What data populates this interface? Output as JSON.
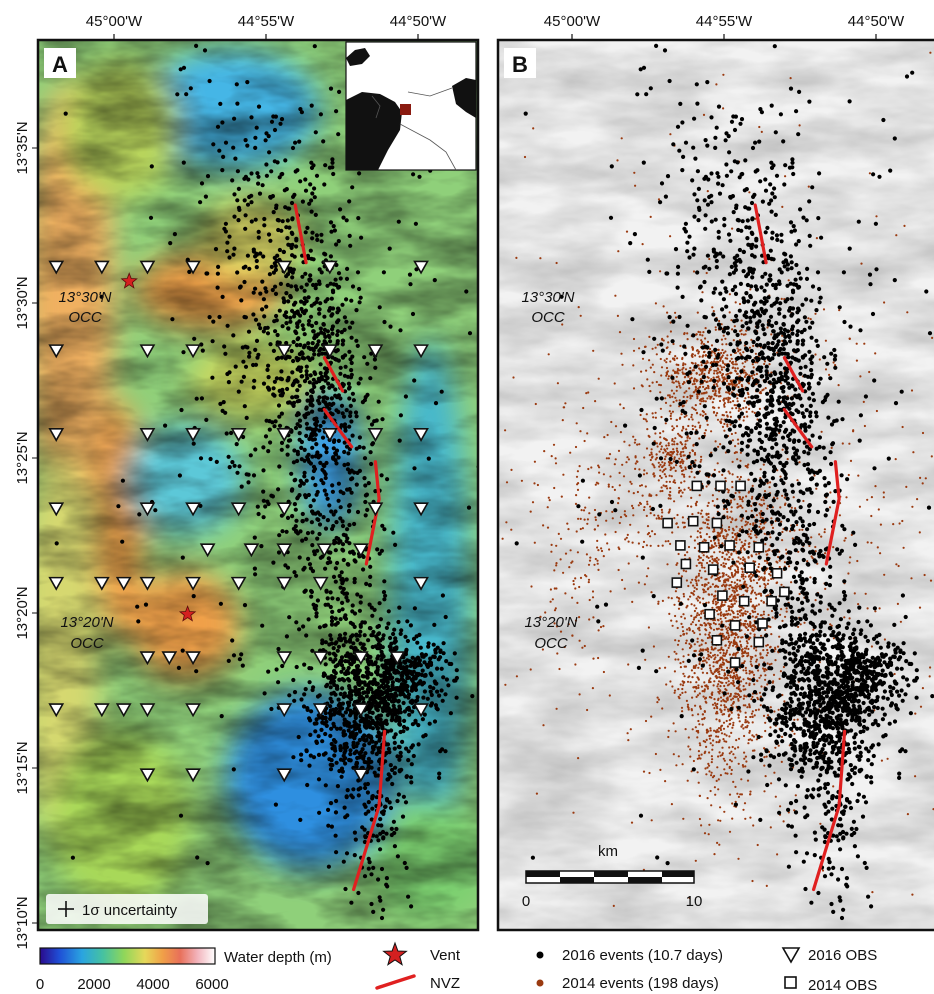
{
  "panels": [
    {
      "letter": "A",
      "occ_north": [
        "13°30'N",
        "OCC"
      ],
      "occ_south": [
        "13°20'N",
        "OCC"
      ],
      "uncertainty_label": "1σ uncertainty"
    },
    {
      "letter": "B",
      "occ_north": [
        "13°30'N",
        "OCC"
      ],
      "occ_south": [
        "13°20'N",
        "OCC"
      ]
    }
  ],
  "longitude_ticks": [
    "45°00'W",
    "44°55'W",
    "44°50'W"
  ],
  "latitude_ticks": [
    "13°35'N",
    "13°30'N",
    "13°25'N",
    "13°20'N",
    "13°15'N",
    "13°10'N"
  ],
  "colorbar": {
    "title": "Water depth (m)",
    "ticks": [
      "0",
      "2000",
      "4000",
      "6000"
    ],
    "stops": [
      "#2a0a8c",
      "#1f4fd6",
      "#2aa4e0",
      "#46c2a0",
      "#8fd65a",
      "#e6d85a",
      "#f0a048",
      "#e8705a",
      "#f2b4bc",
      "#ffffff"
    ]
  },
  "scale_bar": {
    "unit": "km",
    "ticks": [
      "0",
      "10"
    ]
  },
  "legend": {
    "vent": "Vent",
    "nvz": "NVZ",
    "events_2016": "2016 events (10.7 days)",
    "events_2014": "2014 events (198 days)",
    "obs_2016": "2016 OBS",
    "obs_2014": "2014 OBS"
  },
  "colors": {
    "events_2016": "#000000",
    "events_2014": "#9a3a10",
    "nvz": "#e02020",
    "vent": "#d42020",
    "inset_marker": "#8a1a10"
  },
  "obs_2016": [
    [
      -45.015,
      13.52
    ],
    [
      -44.99,
      13.52
    ],
    [
      -44.965,
      13.52
    ],
    [
      -44.94,
      13.52
    ],
    [
      -44.89,
      13.52
    ],
    [
      -44.865,
      13.52
    ],
    [
      -44.815,
      13.52
    ],
    [
      -45.015,
      13.475
    ],
    [
      -44.965,
      13.475
    ],
    [
      -44.94,
      13.475
    ],
    [
      -44.89,
      13.475
    ],
    [
      -44.865,
      13.475
    ],
    [
      -44.84,
      13.475
    ],
    [
      -44.815,
      13.475
    ],
    [
      -45.015,
      13.43
    ],
    [
      -44.965,
      13.43
    ],
    [
      -44.94,
      13.43
    ],
    [
      -44.915,
      13.43
    ],
    [
      -44.89,
      13.43
    ],
    [
      -44.865,
      13.43
    ],
    [
      -44.84,
      13.43
    ],
    [
      -44.815,
      13.43
    ],
    [
      -45.015,
      13.39
    ],
    [
      -44.965,
      13.39
    ],
    [
      -44.94,
      13.39
    ],
    [
      -44.915,
      13.39
    ],
    [
      -44.89,
      13.39
    ],
    [
      -44.84,
      13.39
    ],
    [
      -44.815,
      13.39
    ],
    [
      -44.932,
      13.368
    ],
    [
      -44.908,
      13.368
    ],
    [
      -44.89,
      13.368
    ],
    [
      -44.868,
      13.368
    ],
    [
      -44.848,
      13.368
    ],
    [
      -45.015,
      13.35
    ],
    [
      -44.99,
      13.35
    ],
    [
      -44.978,
      13.35
    ],
    [
      -44.965,
      13.35
    ],
    [
      -44.94,
      13.35
    ],
    [
      -44.915,
      13.35
    ],
    [
      -44.89,
      13.35
    ],
    [
      -44.87,
      13.35
    ],
    [
      -44.815,
      13.35
    ],
    [
      -44.965,
      13.31
    ],
    [
      -44.953,
      13.31
    ],
    [
      -44.94,
      13.31
    ],
    [
      -44.89,
      13.31
    ],
    [
      -44.87,
      13.31
    ],
    [
      -44.848,
      13.31
    ],
    [
      -44.828,
      13.31
    ],
    [
      -45.015,
      13.282
    ],
    [
      -44.99,
      13.282
    ],
    [
      -44.978,
      13.282
    ],
    [
      -44.965,
      13.282
    ],
    [
      -44.94,
      13.282
    ],
    [
      -44.89,
      13.282
    ],
    [
      -44.87,
      13.282
    ],
    [
      -44.848,
      13.282
    ],
    [
      -44.815,
      13.282
    ],
    [
      -44.965,
      13.247
    ],
    [
      -44.94,
      13.247
    ],
    [
      -44.89,
      13.247
    ],
    [
      -44.848,
      13.247
    ]
  ],
  "obs_2014": [
    [
      -44.916,
      13.402
    ],
    [
      -44.903,
      13.402
    ],
    [
      -44.892,
      13.402
    ],
    [
      -44.932,
      13.382
    ],
    [
      -44.918,
      13.383
    ],
    [
      -44.905,
      13.382
    ],
    [
      -44.925,
      13.37
    ],
    [
      -44.912,
      13.369
    ],
    [
      -44.898,
      13.37
    ],
    [
      -44.882,
      13.369
    ],
    [
      -44.922,
      13.36
    ],
    [
      -44.907,
      13.357
    ],
    [
      -44.887,
      13.358
    ],
    [
      -44.872,
      13.355
    ],
    [
      -44.927,
      13.35
    ],
    [
      -44.902,
      13.343
    ],
    [
      -44.89,
      13.34
    ],
    [
      -44.875,
      13.34
    ],
    [
      -44.868,
      13.345
    ],
    [
      -44.909,
      13.333
    ],
    [
      -44.895,
      13.327
    ],
    [
      -44.88,
      13.328
    ],
    [
      -44.905,
      13.319
    ],
    [
      -44.882,
      13.318
    ],
    [
      -44.895,
      13.307
    ]
  ],
  "vents": [
    [
      -44.975,
      13.512
    ],
    [
      -44.943,
      13.333
    ]
  ],
  "nvz_segments": [
    [
      [
        -44.884,
        13.553
      ],
      [
        -44.878,
        13.522
      ]
    ],
    [
      [
        -44.868,
        13.471
      ],
      [
        -44.858,
        13.453
      ]
    ],
    [
      [
        -44.868,
        13.443
      ],
      [
        -44.853,
        13.423
      ]
    ],
    [
      [
        -44.84,
        13.415
      ],
      [
        -44.838,
        13.395
      ],
      [
        -44.845,
        13.36
      ]
    ],
    [
      [
        -44.835,
        13.27
      ],
      [
        -44.838,
        13.23
      ],
      [
        -44.852,
        13.185
      ]
    ]
  ],
  "seismic_clusters_2016": [
    {
      "lon": -44.868,
      "lat": 13.455,
      "sd_lon": 0.012,
      "sd_lat": 0.04,
      "n": 420
    },
    {
      "lon": -44.893,
      "lat": 13.5,
      "sd_lon": 0.016,
      "sd_lat": 0.045,
      "n": 230
    },
    {
      "lon": -44.903,
      "lat": 13.565,
      "sd_lon": 0.02,
      "sd_lat": 0.03,
      "n": 120
    },
    {
      "lon": -44.86,
      "lat": 13.355,
      "sd_lon": 0.014,
      "sd_lat": 0.05,
      "n": 250
    },
    {
      "lon": -44.845,
      "lat": 13.285,
      "sd_lon": 0.016,
      "sd_lat": 0.022,
      "n": 760
    },
    {
      "lon": -44.825,
      "lat": 13.3,
      "sd_lon": 0.014,
      "sd_lat": 0.01,
      "n": 260
    },
    {
      "lon": -44.84,
      "lat": 13.23,
      "sd_lon": 0.01,
      "sd_lat": 0.03,
      "n": 120
    },
    {
      "lon": -44.885,
      "lat": 13.43,
      "sd_lon": 0.02,
      "sd_lat": 0.05,
      "n": 150
    },
    {
      "lon": -44.88,
      "lat": 13.42,
      "sd_lon": 0.06,
      "sd_lat": 0.11,
      "n": 220
    }
  ],
  "seismic_clusters_2014": [
    {
      "lon": -44.9,
      "lat": 13.32,
      "sd_lon": 0.013,
      "sd_lat": 0.04,
      "n": 1700
    },
    {
      "lon": -44.908,
      "lat": 13.46,
      "sd_lon": 0.016,
      "sd_lat": 0.014,
      "n": 700
    },
    {
      "lon": -44.93,
      "lat": 13.418,
      "sd_lon": 0.007,
      "sd_lat": 0.008,
      "n": 180
    },
    {
      "lon": -44.885,
      "lat": 13.37,
      "sd_lon": 0.012,
      "sd_lat": 0.02,
      "n": 250
    },
    {
      "lon": -44.945,
      "lat": 13.39,
      "sd_lon": 0.03,
      "sd_lat": 0.02,
      "n": 260
    },
    {
      "lon": -44.88,
      "lat": 13.39,
      "sd_lon": 0.07,
      "sd_lat": 0.09,
      "n": 650
    },
    {
      "lon": -44.985,
      "lat": 13.34,
      "sd_lon": 0.01,
      "sd_lat": 0.02,
      "n": 60
    }
  ]
}
